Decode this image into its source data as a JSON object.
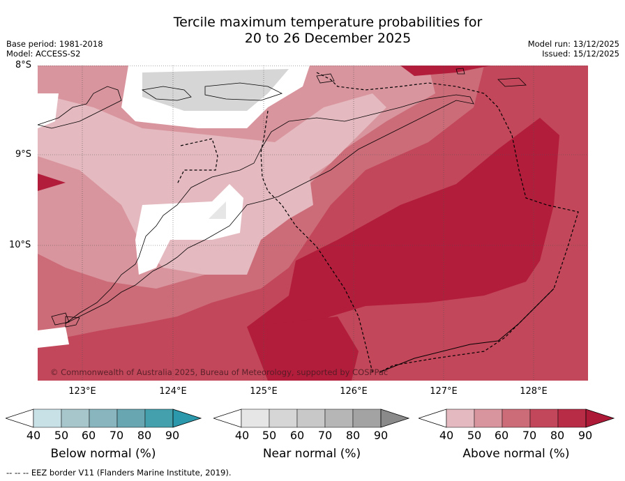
{
  "header": {
    "title_line1": "Tercile maximum temperature probabilities for",
    "title_line2": "20 to 26 December 2025",
    "base_period": "Base period: 1981-2018",
    "model": "Model: ACCESS-S2",
    "model_run": "Model run: 13/12/2025",
    "issued": "Issued: 15/12/2025"
  },
  "map": {
    "lat_labels": [
      "8°S",
      "9°S",
      "10°S"
    ],
    "lon_labels": [
      "123°E",
      "124°E",
      "125°E",
      "126°E",
      "127°E",
      "128°E"
    ],
    "copyright": "© Commonwealth of Australia 2025, Bureau of Meteorology, supported by COSPPac",
    "colors": {
      "above_40": "#e4b9bf",
      "above_50": "#d8959e",
      "above_60": "#cd6c79",
      "above_70": "#c2475a",
      "above_80": "#b21d3b",
      "near_50": "#d6d6d6",
      "near_60": "#e6e6e6"
    }
  },
  "colorbars": [
    {
      "name": "below",
      "title": "Below normal (%)",
      "ticks": [
        "40",
        "50",
        "60",
        "70",
        "80",
        "90"
      ],
      "colors": [
        "#c8e1e7",
        "#a6c6cb",
        "#89b5be",
        "#68a6b2",
        "#45a0ae",
        "#2b99ab"
      ]
    },
    {
      "name": "near",
      "title": "Near normal (%)",
      "ticks": [
        "40",
        "50",
        "60",
        "70",
        "80",
        "90"
      ],
      "colors": [
        "#e6e6e6",
        "#d6d6d6",
        "#c8c8c8",
        "#b6b6b6",
        "#a3a3a3",
        "#8a8a8a"
      ]
    },
    {
      "name": "above",
      "title": "Above normal (%)",
      "ticks": [
        "40",
        "50",
        "60",
        "70",
        "80",
        "90"
      ],
      "colors": [
        "#e4b9bf",
        "#d8959e",
        "#cd6c79",
        "#c2475a",
        "#b82c45",
        "#ad1a37"
      ]
    }
  ],
  "footer": "--  --  -- EEZ border V11 (Flanders Marine Institute, 2019)."
}
